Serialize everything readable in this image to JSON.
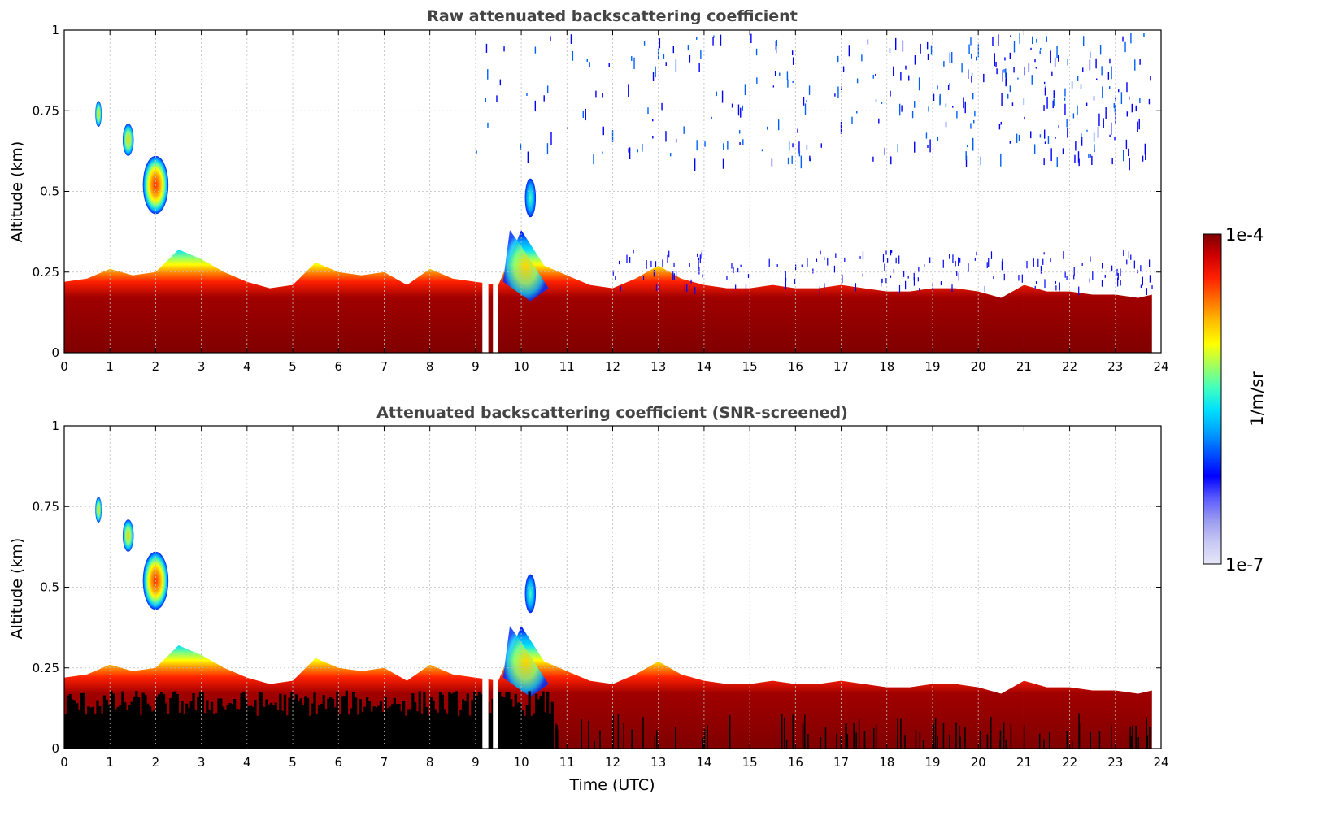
{
  "chart_data": [
    {
      "type": "heatmap",
      "title": "Raw attenuated backscattering coefficient",
      "xlabel": "",
      "ylabel": "Altitude (km)",
      "xlim": [
        0,
        24
      ],
      "ylim": [
        0,
        1
      ],
      "x_ticks": [
        "0",
        "1",
        "2",
        "3",
        "4",
        "5",
        "6",
        "7",
        "8",
        "9",
        "10",
        "11",
        "12",
        "13",
        "14",
        "15",
        "16",
        "17",
        "18",
        "19",
        "20",
        "21",
        "22",
        "23",
        "24"
      ],
      "y_ticks": [
        "0",
        "0.25",
        "0.5",
        "0.75",
        "1"
      ],
      "grid": true,
      "layer_top_km": {
        "time_utc": [
          0,
          0.5,
          1,
          1.5,
          2,
          2.5,
          3,
          3.5,
          4,
          4.5,
          5,
          5.5,
          6,
          6.5,
          7,
          7.5,
          8,
          8.5,
          9,
          9.5,
          10,
          10.5,
          11,
          11.5,
          12,
          12.5,
          13,
          13.5,
          14,
          14.5,
          15,
          15.5,
          16,
          16.5,
          17,
          17.5,
          18,
          18.5,
          19,
          19.5,
          20,
          20.5,
          21,
          21.5,
          22,
          22.5,
          23,
          23.5,
          23.8
        ],
        "altitude_km": [
          0.22,
          0.23,
          0.26,
          0.24,
          0.25,
          0.32,
          0.29,
          0.25,
          0.22,
          0.2,
          0.21,
          0.28,
          0.25,
          0.24,
          0.25,
          0.21,
          0.26,
          0.23,
          0.22,
          0.21,
          0.38,
          0.27,
          0.24,
          0.21,
          0.2,
          0.23,
          0.27,
          0.23,
          0.21,
          0.2,
          0.2,
          0.21,
          0.2,
          0.2,
          0.21,
          0.2,
          0.19,
          0.19,
          0.2,
          0.2,
          0.19,
          0.17,
          0.21,
          0.19,
          0.19,
          0.18,
          0.18,
          0.17,
          0.18
        ]
      },
      "data_gaps_utc": [
        [
          9.15,
          9.28
        ],
        [
          9.38,
          9.5
        ]
      ],
      "aerosol_plumes": [
        {
          "time_utc": 2.0,
          "altitude_km": 0.52,
          "peak": "1e-5"
        },
        {
          "time_utc": 1.4,
          "altitude_km": 0.66,
          "peak": "3e-6"
        },
        {
          "time_utc": 0.75,
          "altitude_km": 0.74,
          "peak": "3e-6"
        },
        {
          "time_utc": 10.2,
          "altitude_km": 0.48,
          "peak": "1e-6"
        }
      ],
      "noise_region": {
        "time_utc": [
          9,
          23.8
        ],
        "altitude_km": [
          0.25,
          1
        ]
      }
    },
    {
      "type": "heatmap",
      "title": "Attenuated backscattering coefficient (SNR-screened)",
      "xlabel": "Time (UTC)",
      "ylabel": "Altitude (km)",
      "xlim": [
        0,
        24
      ],
      "ylim": [
        0,
        1
      ],
      "x_ticks": [
        "0",
        "1",
        "2",
        "3",
        "4",
        "5",
        "6",
        "7",
        "8",
        "9",
        "10",
        "11",
        "12",
        "13",
        "14",
        "15",
        "16",
        "17",
        "18",
        "19",
        "20",
        "21",
        "22",
        "23",
        "24"
      ],
      "y_ticks": [
        "0",
        "0.25",
        "0.5",
        "0.75",
        "1"
      ],
      "grid": true,
      "screened_region": {
        "time_utc": [
          0,
          10.7
        ],
        "altitude_km": [
          0,
          0.18
        ],
        "color": "#000000"
      },
      "data_gaps_utc": [
        [
          9.15,
          9.28
        ],
        [
          9.38,
          9.5
        ]
      ]
    }
  ],
  "colorbar": {
    "label": "1/m/sr",
    "max_label": "1e-4",
    "min_label": "1e-7",
    "scale": "log",
    "colors": [
      "#e6e6f8",
      "#c8c8f5",
      "#9a9af0",
      "#5a5aff",
      "#0000ff",
      "#0050ff",
      "#00a0ff",
      "#00e0ff",
      "#40ffc0",
      "#a0ff60",
      "#ffff00",
      "#ffc000",
      "#ff7000",
      "#ff2000",
      "#d00000",
      "#800000"
    ]
  },
  "colors": {
    "background": "#ffffff",
    "grid": "#bdbdbd",
    "screened": "#000000",
    "title": "#444444"
  }
}
